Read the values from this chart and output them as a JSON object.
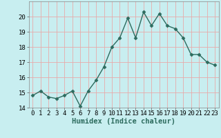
{
  "x": [
    0,
    1,
    2,
    3,
    4,
    5,
    6,
    7,
    8,
    9,
    10,
    11,
    12,
    13,
    14,
    15,
    16,
    17,
    18,
    19,
    20,
    21,
    22,
    23
  ],
  "y": [
    14.8,
    15.1,
    14.7,
    14.6,
    14.8,
    15.1,
    14.1,
    15.1,
    15.8,
    16.7,
    18.0,
    18.6,
    19.9,
    18.6,
    20.3,
    19.4,
    20.2,
    19.4,
    19.2,
    18.6,
    17.5,
    17.5,
    17.0,
    16.8
  ],
  "xlabel": "Humidex (Indice chaleur)",
  "ylim": [
    14,
    21
  ],
  "xlim": [
    -0.5,
    23.5
  ],
  "yticks": [
    14,
    15,
    16,
    17,
    18,
    19,
    20
  ],
  "xticks": [
    0,
    1,
    2,
    3,
    4,
    5,
    6,
    7,
    8,
    9,
    10,
    11,
    12,
    13,
    14,
    15,
    16,
    17,
    18,
    19,
    20,
    21,
    22,
    23
  ],
  "line_color": "#2d6b5e",
  "marker_color": "#2d6b5e",
  "bg_color": "#c8eef0",
  "grid_color": "#e8aaaa",
  "tick_fontsize": 6.5,
  "xlabel_fontsize": 7.5,
  "marker_size": 2.5,
  "line_width": 1.0
}
